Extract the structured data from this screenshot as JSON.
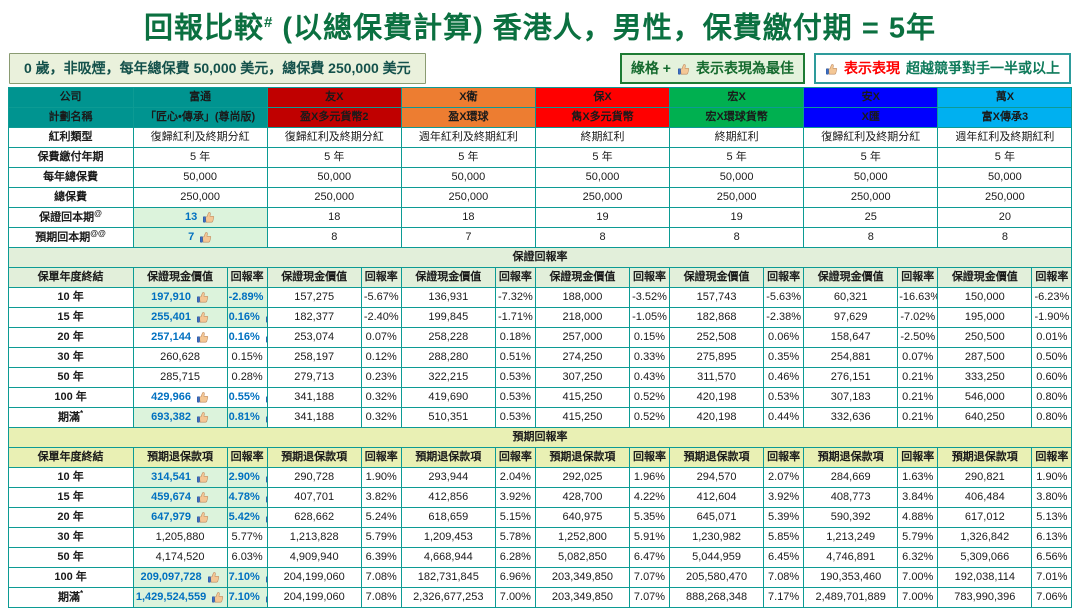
{
  "title": {
    "prefix": "回報比較",
    "sup": "#",
    "suffix": " (以總保費計算) 香港人，男性，保費繳付期 = 5年"
  },
  "info_note": "0 歲，非吸煙，每年總保費 50,000 美元，總保費 250,000 美元",
  "legends": {
    "best": {
      "prefix": "綠格 +",
      "suffix": "表示表現為最佳",
      "icon": "thumb-up-icon"
    },
    "half": {
      "highlight": "表示表現",
      "rest": "超越競爭對手一半或以上",
      "icon": "thumb-up-icon"
    }
  },
  "colors": {
    "accent_teal": "#009490",
    "title_green": "#0B7040",
    "highlight_cell_green": "#DCF3DC",
    "section1_band": "#E2EFDA",
    "section2_band": "#E9F0B4",
    "highlight_text_blue": "#0070C0",
    "legend_red": "#FF0000"
  },
  "table": {
    "corner_labels": {
      "company": "公司",
      "plan": "計劃名稱"
    },
    "companies": [
      {
        "name": "富通",
        "plan": "「匠心•傳承」(尊尚版)",
        "color": "#009490"
      },
      {
        "name": "友X",
        "plan": "盈X多元貨幣2",
        "color": "#C00000"
      },
      {
        "name": "X衛",
        "plan": "盈X環球",
        "color": "#ED7D31"
      },
      {
        "name": "保X",
        "plan": "雋X多元貨幣",
        "color": "#FF0000"
      },
      {
        "name": "宏X",
        "plan": "宏X環球貨幣",
        "color": "#00B050"
      },
      {
        "name": "安X",
        "plan": "X匯",
        "color": "#0000FF"
      },
      {
        "name": "萬X",
        "plan": "富X傳承3",
        "color": "#00B0F0"
      }
    ],
    "info_rows": [
      {
        "label": "紅利類型",
        "sup": "",
        "first_status": "",
        "values": [
          "復歸紅利及終期分紅",
          "復歸紅利及終期分紅",
          "週年紅利及終期紅利",
          "終期紅利",
          "終期紅利",
          "復歸紅利及終期分紅",
          "週年紅利及終期紅利"
        ]
      },
      {
        "label": "保費繳付年期",
        "sup": "",
        "first_status": "",
        "values": [
          "5 年",
          "5 年",
          "5 年",
          "5 年",
          "5 年",
          "5 年",
          "5 年"
        ]
      },
      {
        "label": "每年總保費",
        "sup": "",
        "first_status": "",
        "values": [
          "50,000",
          "50,000",
          "50,000",
          "50,000",
          "50,000",
          "50,000",
          "50,000"
        ]
      },
      {
        "label": "總保費",
        "sup": "",
        "first_status": "",
        "values": [
          "250,000",
          "250,000",
          "250,000",
          "250,000",
          "250,000",
          "250,000",
          "250,000"
        ]
      },
      {
        "label": "保證回本期",
        "sup": "@",
        "first_status": "best",
        "values": [
          "13",
          "18",
          "18",
          "19",
          "19",
          "25",
          "20"
        ]
      },
      {
        "label": "預期回本期",
        "sup": "@@",
        "first_status": "best",
        "values": [
          "7",
          "8",
          "7",
          "8",
          "8",
          "8",
          "8"
        ]
      }
    ],
    "period_header": "保單年度終結",
    "rate_header": "回報率",
    "sections": [
      {
        "title": "保證回報率",
        "value_header": "保證現金價值",
        "rows": [
          {
            "period": "10 年",
            "sup": "",
            "first_status": "best",
            "cells": [
              [
                "197,910",
                "-2.89%"
              ],
              [
                "157,275",
                "-5.67%"
              ],
              [
                "136,931",
                "-7.32%"
              ],
              [
                "188,000",
                "-3.52%"
              ],
              [
                "157,743",
                "-5.63%"
              ],
              [
                "60,321",
                "-16.63%"
              ],
              [
                "150,000",
                "-6.23%"
              ]
            ]
          },
          {
            "period": "15 年",
            "sup": "",
            "first_status": "best",
            "cells": [
              [
                "255,401",
                "0.16%"
              ],
              [
                "182,377",
                "-2.40%"
              ],
              [
                "199,845",
                "-1.71%"
              ],
              [
                "218,000",
                "-1.05%"
              ],
              [
                "182,868",
                "-2.38%"
              ],
              [
                "97,629",
                "-7.02%"
              ],
              [
                "195,000",
                "-1.90%"
              ]
            ]
          },
          {
            "period": "20 年",
            "sup": "",
            "first_status": "beat",
            "cells": [
              [
                "257,144",
                "0.16%"
              ],
              [
                "253,074",
                "0.07%"
              ],
              [
                "258,228",
                "0.18%"
              ],
              [
                "257,000",
                "0.15%"
              ],
              [
                "252,508",
                "0.06%"
              ],
              [
                "158,647",
                "-2.50%"
              ],
              [
                "250,500",
                "0.01%"
              ]
            ]
          },
          {
            "period": "30 年",
            "sup": "",
            "first_status": "",
            "cells": [
              [
                "260,628",
                "0.15%"
              ],
              [
                "258,197",
                "0.12%"
              ],
              [
                "288,280",
                "0.51%"
              ],
              [
                "274,250",
                "0.33%"
              ],
              [
                "275,895",
                "0.35%"
              ],
              [
                "254,881",
                "0.07%"
              ],
              [
                "287,500",
                "0.50%"
              ]
            ]
          },
          {
            "period": "50 年",
            "sup": "",
            "first_status": "",
            "cells": [
              [
                "285,715",
                "0.28%"
              ],
              [
                "279,713",
                "0.23%"
              ],
              [
                "322,215",
                "0.53%"
              ],
              [
                "307,250",
                "0.43%"
              ],
              [
                "311,570",
                "0.46%"
              ],
              [
                "276,151",
                "0.21%"
              ],
              [
                "333,250",
                "0.60%"
              ]
            ]
          },
          {
            "period": "100 年",
            "sup": "",
            "first_status": "beat",
            "cells": [
              [
                "429,966",
                "0.55%"
              ],
              [
                "341,188",
                "0.32%"
              ],
              [
                "419,690",
                "0.53%"
              ],
              [
                "415,250",
                "0.52%"
              ],
              [
                "420,198",
                "0.53%"
              ],
              [
                "307,183",
                "0.21%"
              ],
              [
                "546,000",
                "0.80%"
              ]
            ]
          },
          {
            "period": "期滿",
            "sup": "*",
            "first_status": "best",
            "cells": [
              [
                "693,382",
                "0.81%"
              ],
              [
                "341,188",
                "0.32%"
              ],
              [
                "510,351",
                "0.53%"
              ],
              [
                "415,250",
                "0.52%"
              ],
              [
                "420,198",
                "0.44%"
              ],
              [
                "332,636",
                "0.21%"
              ],
              [
                "640,250",
                "0.80%"
              ]
            ]
          }
        ]
      },
      {
        "title": "預期回報率",
        "value_header": "預期退保款項",
        "rows": [
          {
            "period": "10 年",
            "sup": "",
            "first_status": "best",
            "cells": [
              [
                "314,541",
                "2.90%"
              ],
              [
                "290,728",
                "1.90%"
              ],
              [
                "293,944",
                "2.04%"
              ],
              [
                "292,025",
                "1.96%"
              ],
              [
                "294,570",
                "2.07%"
              ],
              [
                "284,669",
                "1.63%"
              ],
              [
                "290,821",
                "1.90%"
              ]
            ]
          },
          {
            "period": "15 年",
            "sup": "",
            "first_status": "best",
            "cells": [
              [
                "459,674",
                "4.78%"
              ],
              [
                "407,701",
                "3.82%"
              ],
              [
                "412,856",
                "3.92%"
              ],
              [
                "428,700",
                "4.22%"
              ],
              [
                "412,604",
                "3.92%"
              ],
              [
                "408,773",
                "3.84%"
              ],
              [
                "406,484",
                "3.80%"
              ]
            ]
          },
          {
            "period": "20 年",
            "sup": "",
            "first_status": "best",
            "cells": [
              [
                "647,979",
                "5.42%"
              ],
              [
                "628,662",
                "5.24%"
              ],
              [
                "618,659",
                "5.15%"
              ],
              [
                "640,975",
                "5.35%"
              ],
              [
                "645,071",
                "5.39%"
              ],
              [
                "590,392",
                "4.88%"
              ],
              [
                "617,012",
                "5.13%"
              ]
            ]
          },
          {
            "period": "30 年",
            "sup": "",
            "first_status": "",
            "cells": [
              [
                "1,205,880",
                "5.77%"
              ],
              [
                "1,213,828",
                "5.79%"
              ],
              [
                "1,209,453",
                "5.78%"
              ],
              [
                "1,252,800",
                "5.91%"
              ],
              [
                "1,230,982",
                "5.85%"
              ],
              [
                "1,213,249",
                "5.79%"
              ],
              [
                "1,326,842",
                "6.13%"
              ]
            ]
          },
          {
            "period": "50 年",
            "sup": "",
            "first_status": "",
            "cells": [
              [
                "4,174,520",
                "6.03%"
              ],
              [
                "4,909,940",
                "6.39%"
              ],
              [
                "4,668,944",
                "6.28%"
              ],
              [
                "5,082,850",
                "6.47%"
              ],
              [
                "5,044,959",
                "6.45%"
              ],
              [
                "4,746,891",
                "6.32%"
              ],
              [
                "5,309,066",
                "6.56%"
              ]
            ]
          },
          {
            "period": "100 年",
            "sup": "",
            "first_status": "best",
            "cells": [
              [
                "209,097,728",
                "7.10%"
              ],
              [
                "204,199,060",
                "7.08%"
              ],
              [
                "182,731,845",
                "6.96%"
              ],
              [
                "203,349,850",
                "7.07%"
              ],
              [
                "205,580,470",
                "7.08%"
              ],
              [
                "190,353,460",
                "7.00%"
              ],
              [
                "192,038,114",
                "7.01%"
              ]
            ]
          },
          {
            "period": "期滿",
            "sup": "*",
            "first_status": "best",
            "cells": [
              [
                "1,429,524,559",
                "7.10%"
              ],
              [
                "204,199,060",
                "7.08%"
              ],
              [
                "2,326,677,253",
                "7.00%"
              ],
              [
                "203,349,850",
                "7.07%"
              ],
              [
                "888,268,348",
                "7.17%"
              ],
              [
                "2,489,701,889",
                "7.00%"
              ],
              [
                "783,990,396",
                "7.06%"
              ]
            ]
          }
        ]
      }
    ]
  }
}
